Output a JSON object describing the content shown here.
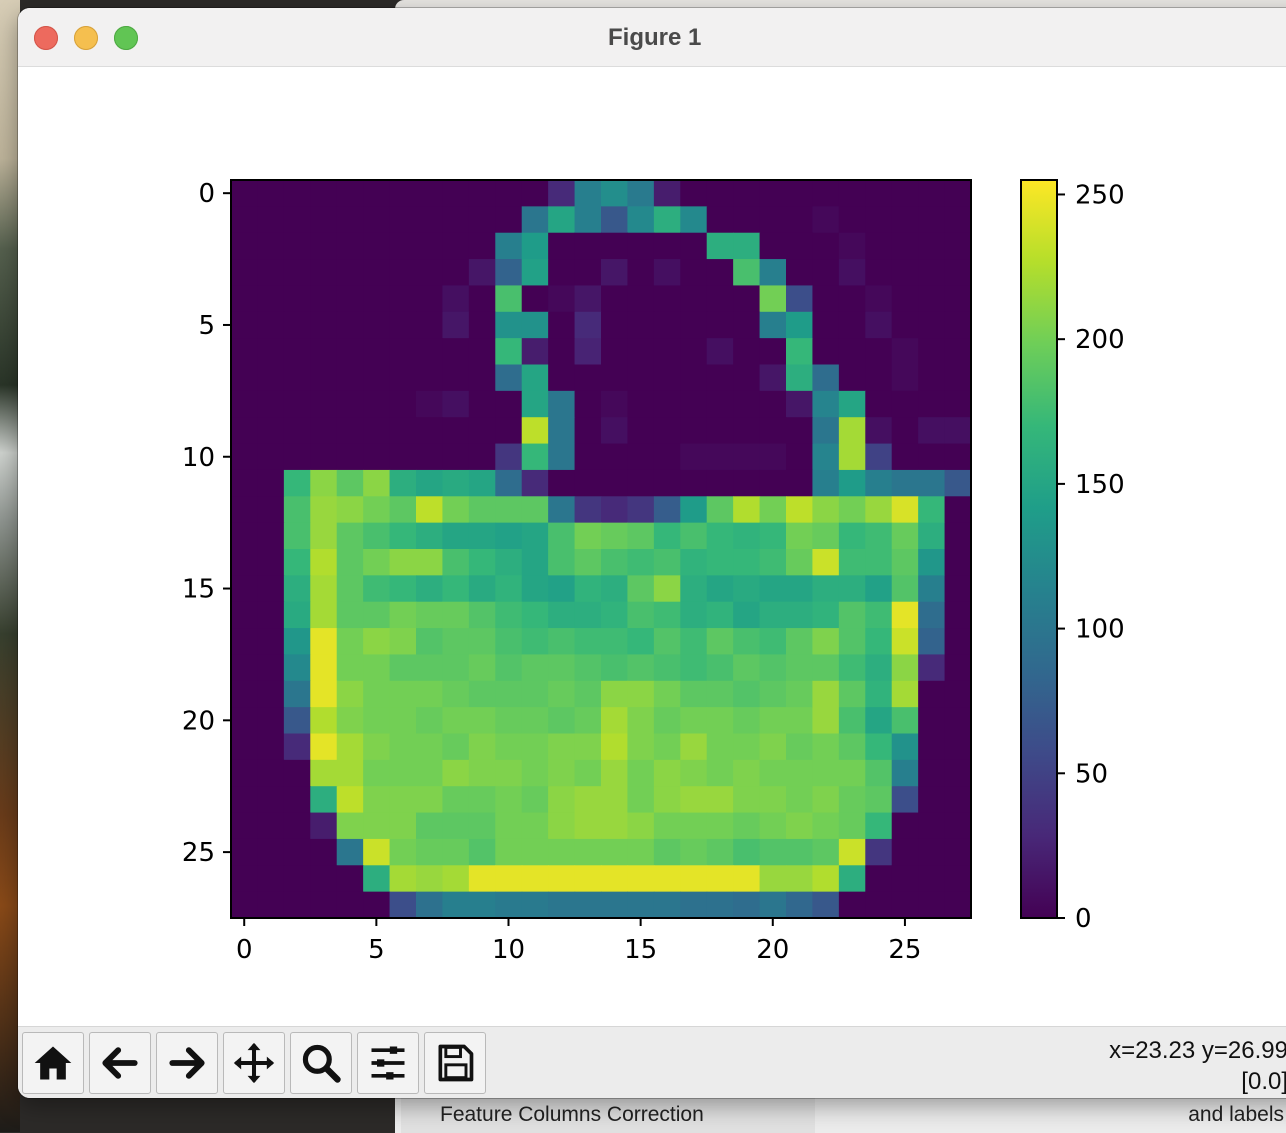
{
  "window": {
    "title": "Figure 1"
  },
  "toolbar": {
    "buttons": [
      {
        "name": "home",
        "icon": "home-icon"
      },
      {
        "name": "back",
        "icon": "arrow-left-icon"
      },
      {
        "name": "forward",
        "icon": "arrow-right-icon"
      },
      {
        "name": "pan",
        "icon": "move-icon"
      },
      {
        "name": "zoom",
        "icon": "magnifier-icon"
      },
      {
        "name": "configure",
        "icon": "sliders-icon"
      },
      {
        "name": "save",
        "icon": "floppy-disk-icon"
      }
    ],
    "coords": "x=23.23 y=26.99",
    "value": "[0.0]"
  },
  "background_window": {
    "left_text": "Feature Columns Correction",
    "right_text": "and labels"
  },
  "chart_data": {
    "type": "heatmap",
    "colormap": "viridis",
    "rows": 28,
    "cols": 28,
    "xlim": [
      -0.5,
      27.5
    ],
    "ylim": [
      27.5,
      -0.5
    ],
    "xticks": [
      "0",
      "5",
      "10",
      "15",
      "20",
      "25"
    ],
    "yticks": [
      "0",
      "5",
      "10",
      "15",
      "20",
      "25"
    ],
    "colorbar": {
      "min": 0,
      "max": 255,
      "ticks": [
        "0",
        "50",
        "100",
        "150",
        "200",
        "250"
      ]
    },
    "values": [
      [
        0,
        0,
        0,
        0,
        0,
        0,
        0,
        0,
        0,
        0,
        0,
        0,
        30,
        110,
        125,
        105,
        20,
        0,
        0,
        0,
        0,
        0,
        0,
        0,
        0,
        0,
        0,
        0
      ],
      [
        0,
        0,
        0,
        0,
        0,
        0,
        0,
        0,
        0,
        0,
        0,
        100,
        150,
        110,
        70,
        120,
        160,
        120,
        0,
        0,
        0,
        0,
        5,
        0,
        0,
        0,
        0,
        0
      ],
      [
        0,
        0,
        0,
        0,
        0,
        0,
        0,
        0,
        0,
        0,
        110,
        140,
        0,
        0,
        0,
        0,
        0,
        0,
        160,
        160,
        0,
        0,
        0,
        5,
        0,
        0,
        0,
        0
      ],
      [
        0,
        0,
        0,
        0,
        0,
        0,
        0,
        0,
        0,
        15,
        80,
        145,
        0,
        0,
        15,
        0,
        10,
        0,
        0,
        180,
        110,
        0,
        0,
        10,
        0,
        0,
        0,
        0
      ],
      [
        0,
        0,
        0,
        0,
        0,
        0,
        0,
        0,
        10,
        0,
        180,
        0,
        5,
        15,
        0,
        0,
        0,
        0,
        0,
        0,
        200,
        60,
        0,
        0,
        5,
        0,
        0,
        0
      ],
      [
        0,
        0,
        0,
        0,
        0,
        0,
        0,
        0,
        15,
        0,
        130,
        130,
        0,
        30,
        0,
        0,
        0,
        0,
        0,
        0,
        110,
        140,
        0,
        0,
        10,
        0,
        0,
        0
      ],
      [
        0,
        0,
        0,
        0,
        0,
        0,
        0,
        0,
        0,
        0,
        170,
        20,
        0,
        25,
        0,
        0,
        0,
        0,
        10,
        0,
        0,
        170,
        0,
        0,
        0,
        5,
        0,
        0
      ],
      [
        0,
        0,
        0,
        0,
        0,
        0,
        0,
        0,
        0,
        0,
        90,
        150,
        0,
        0,
        0,
        0,
        0,
        0,
        0,
        0,
        15,
        160,
        90,
        0,
        0,
        5,
        0,
        0
      ],
      [
        0,
        0,
        0,
        0,
        0,
        0,
        0,
        5,
        10,
        0,
        0,
        150,
        100,
        0,
        5,
        0,
        0,
        0,
        0,
        0,
        0,
        15,
        115,
        150,
        0,
        0,
        0,
        0
      ],
      [
        0,
        0,
        0,
        0,
        0,
        0,
        0,
        0,
        0,
        0,
        0,
        230,
        100,
        0,
        10,
        0,
        0,
        0,
        0,
        0,
        0,
        0,
        100,
        220,
        10,
        0,
        10,
        10
      ],
      [
        0,
        0,
        0,
        0,
        0,
        0,
        0,
        0,
        0,
        0,
        40,
        170,
        100,
        0,
        0,
        0,
        0,
        5,
        5,
        5,
        5,
        0,
        115,
        220,
        50,
        0,
        0,
        0
      ],
      [
        0,
        0,
        170,
        210,
        190,
        210,
        160,
        150,
        155,
        150,
        90,
        30,
        0,
        0,
        0,
        0,
        0,
        0,
        0,
        0,
        0,
        0,
        110,
        140,
        110,
        100,
        100,
        70
      ],
      [
        0,
        0,
        180,
        215,
        210,
        200,
        190,
        230,
        200,
        190,
        190,
        190,
        100,
        40,
        30,
        40,
        75,
        140,
        190,
        225,
        200,
        230,
        210,
        200,
        215,
        240,
        170,
        0
      ],
      [
        0,
        0,
        180,
        215,
        190,
        180,
        170,
        160,
        150,
        150,
        145,
        150,
        180,
        200,
        195,
        190,
        170,
        180,
        170,
        165,
        170,
        200,
        195,
        170,
        175,
        195,
        160,
        0
      ],
      [
        0,
        0,
        170,
        225,
        190,
        200,
        210,
        210,
        180,
        170,
        160,
        150,
        180,
        190,
        180,
        175,
        180,
        165,
        170,
        170,
        175,
        195,
        235,
        175,
        175,
        190,
        135,
        0
      ],
      [
        0,
        0,
        160,
        220,
        190,
        175,
        170,
        160,
        170,
        155,
        165,
        150,
        145,
        165,
        160,
        190,
        210,
        160,
        150,
        155,
        150,
        150,
        160,
        160,
        145,
        185,
        110,
        0
      ],
      [
        0,
        0,
        155,
        220,
        190,
        190,
        200,
        195,
        195,
        185,
        175,
        170,
        160,
        160,
        165,
        180,
        175,
        160,
        165,
        150,
        160,
        160,
        165,
        185,
        175,
        245,
        90,
        0
      ],
      [
        0,
        0,
        135,
        245,
        200,
        210,
        205,
        185,
        190,
        190,
        180,
        175,
        180,
        175,
        175,
        170,
        185,
        175,
        190,
        180,
        175,
        190,
        205,
        185,
        170,
        235,
        80,
        0
      ],
      [
        0,
        0,
        120,
        245,
        200,
        200,
        190,
        190,
        190,
        195,
        185,
        190,
        190,
        185,
        180,
        185,
        180,
        175,
        180,
        190,
        185,
        190,
        190,
        175,
        160,
        210,
        30,
        0
      ],
      [
        0,
        0,
        100,
        245,
        210,
        200,
        200,
        200,
        195,
        190,
        190,
        190,
        195,
        190,
        210,
        210,
        200,
        190,
        190,
        185,
        190,
        195,
        215,
        190,
        165,
        220,
        0,
        0
      ],
      [
        0,
        0,
        70,
        225,
        205,
        200,
        200,
        195,
        200,
        200,
        195,
        195,
        190,
        195,
        220,
        205,
        195,
        200,
        200,
        195,
        200,
        200,
        215,
        180,
        150,
        180,
        0,
        0
      ],
      [
        0,
        0,
        30,
        245,
        220,
        205,
        200,
        200,
        195,
        205,
        200,
        200,
        205,
        205,
        225,
        205,
        200,
        215,
        200,
        200,
        205,
        195,
        200,
        190,
        170,
        130,
        0,
        0
      ],
      [
        0,
        0,
        0,
        220,
        220,
        200,
        200,
        200,
        210,
        205,
        205,
        200,
        205,
        200,
        215,
        200,
        210,
        205,
        200,
        205,
        200,
        200,
        200,
        200,
        185,
        110,
        0,
        0
      ],
      [
        0,
        0,
        0,
        160,
        230,
        205,
        205,
        205,
        195,
        195,
        200,
        195,
        210,
        215,
        215,
        200,
        210,
        215,
        215,
        205,
        205,
        200,
        205,
        195,
        190,
        60,
        0,
        0
      ],
      [
        0,
        0,
        0,
        20,
        205,
        205,
        205,
        190,
        190,
        190,
        200,
        200,
        210,
        215,
        215,
        210,
        200,
        200,
        200,
        195,
        200,
        205,
        200,
        195,
        170,
        0,
        0,
        0
      ],
      [
        0,
        0,
        0,
        0,
        100,
        235,
        200,
        195,
        195,
        185,
        200,
        200,
        200,
        200,
        200,
        200,
        190,
        195,
        190,
        180,
        185,
        185,
        190,
        235,
        40,
        0,
        0,
        0
      ],
      [
        0,
        0,
        0,
        0,
        0,
        160,
        220,
        215,
        220,
        245,
        245,
        245,
        245,
        245,
        245,
        245,
        245,
        245,
        245,
        245,
        215,
        215,
        225,
        160,
        0,
        0,
        0,
        0
      ],
      [
        0,
        0,
        0,
        0,
        0,
        0,
        60,
        95,
        110,
        110,
        105,
        105,
        100,
        100,
        100,
        100,
        100,
        95,
        95,
        90,
        100,
        85,
        70,
        0,
        0,
        0,
        0,
        0
      ]
    ]
  }
}
